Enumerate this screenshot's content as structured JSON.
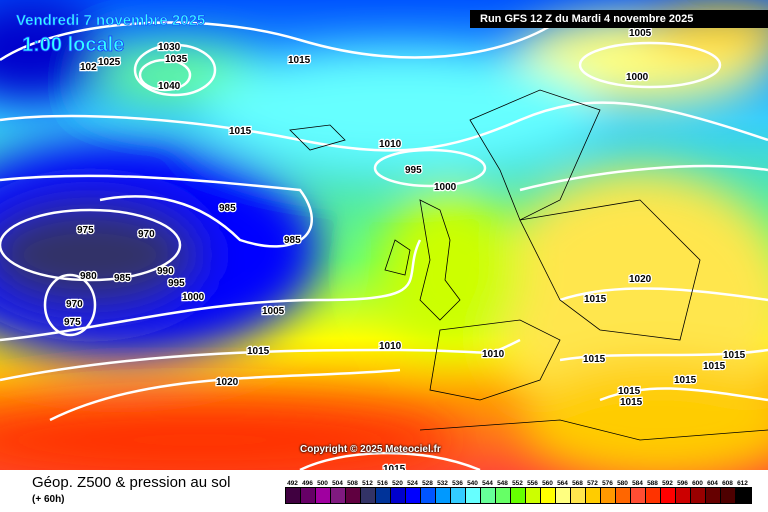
{
  "header": {
    "date": "Vendredi 7 novembre 2025",
    "time": "1:00 locale",
    "run": "Run GFS 12 Z du Mardi 4 novembre 2025",
    "copyright": "Copyright © 2025 Meteociel.fr"
  },
  "footer": {
    "title": "Géop. Z500 & pression au sol",
    "subtitle": "(+ 60h)"
  },
  "legend": {
    "values": [
      "492",
      "496",
      "500",
      "504",
      "508",
      "512",
      "516",
      "520",
      "524",
      "528",
      "532",
      "536",
      "540",
      "544",
      "548",
      "552",
      "556",
      "560",
      "564",
      "568",
      "572",
      "576",
      "580",
      "584",
      "588",
      "592",
      "596",
      "600",
      "604",
      "608",
      "612"
    ],
    "colors": [
      "#400040",
      "#660066",
      "#a000a0",
      "#801a80",
      "#600040",
      "#333366",
      "#003399",
      "#0000cc",
      "#0000ff",
      "#0055ff",
      "#0099ff",
      "#33ccff",
      "#66ffff",
      "#66ff99",
      "#66ff66",
      "#66ff00",
      "#ccff00",
      "#ffff00",
      "#ffff80",
      "#ffe64d",
      "#ffcc00",
      "#ff9900",
      "#ff6600",
      "#ff4d33",
      "#ff3300",
      "#ff0000",
      "#cc0000",
      "#990000",
      "#660000",
      "#4d0000",
      "#000000"
    ]
  },
  "isobar_labels": [
    "1030",
    "1035",
    "1025",
    "102",
    "1040",
    "1015",
    "1015",
    "1010",
    "995",
    "1000",
    "985",
    "975",
    "970",
    "985",
    "980",
    "985",
    "990",
    "995",
    "1000",
    "970",
    "975",
    "1005",
    "1015",
    "1010",
    "1010",
    "1020",
    "1020",
    "1015",
    "1015",
    "1015",
    "1015",
    "1015",
    "1015",
    "1015",
    "1015",
    "1005",
    "1000"
  ]
}
